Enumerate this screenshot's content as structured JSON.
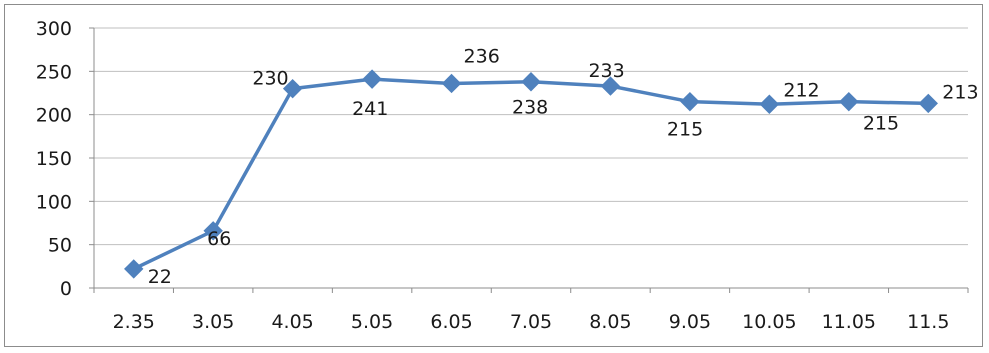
{
  "chart_data": {
    "type": "line",
    "categories": [
      "2.35",
      "3.05",
      "4.05",
      "5.05",
      "6.05",
      "7.05",
      "8.05",
      "9.05",
      "10.05",
      "11.05",
      "11.5"
    ],
    "series": [
      {
        "values": [
          22,
          66,
          230,
          241,
          236,
          238,
          233,
          215,
          212,
          215,
          213
        ]
      }
    ],
    "data_labels": [
      "22",
      "66",
      "230",
      "241",
      "236",
      "238",
      "233",
      "215",
      "212",
      "215",
      "213"
    ],
    "y_ticks": [
      "0",
      "50",
      "100",
      "150",
      "200",
      "250",
      "300"
    ],
    "ylim": [
      0,
      300
    ],
    "grid": true,
    "legend": "none",
    "marker": "diamond",
    "colors": {
      "series": "#4f81bd",
      "grid": "#bfbfbf",
      "axis": "#8c8c8c",
      "text": "#1a1a1a"
    }
  }
}
